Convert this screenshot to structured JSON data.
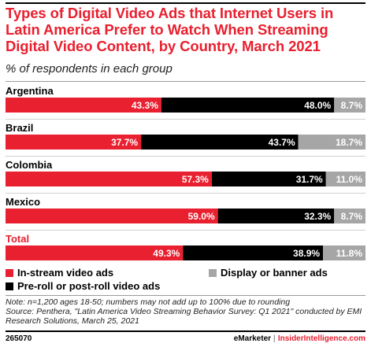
{
  "title": "Types of Digital Video Ads that Internet Users in Latin America Prefer to Watch When Streaming Digital Video Content, by Country, March 2021",
  "subtitle": "% of respondents in each group",
  "colors": {
    "instream": "#e8202f",
    "preroll": "#000000",
    "display": "#a6a6a6",
    "title": "#e8202f"
  },
  "chart_data": {
    "type": "bar",
    "orientation": "horizontal",
    "stacked": true,
    "categories": [
      "Argentina",
      "Brazil",
      "Colombia",
      "Mexico",
      "Total"
    ],
    "series": [
      {
        "name": "In-stream video ads",
        "values": [
          43.3,
          37.7,
          57.3,
          59.0,
          49.3
        ],
        "labels": [
          "43.3%",
          "37.7%",
          "57.3%",
          "59.0%",
          "49.3%"
        ]
      },
      {
        "name": "Pre-roll or post-roll video ads",
        "values": [
          48.0,
          43.7,
          31.7,
          32.3,
          38.9
        ],
        "labels": [
          "48.0%",
          "43.7%",
          "31.7%",
          "32.3%",
          "38.9%"
        ]
      },
      {
        "name": "Display or banner ads",
        "values": [
          8.7,
          18.7,
          11.0,
          8.7,
          11.8
        ],
        "labels": [
          "8.7%",
          "18.7%",
          "11.0%",
          "8.7%",
          "11.8%"
        ]
      }
    ],
    "highlight_category": "Total",
    "legend": "bottom",
    "grid": false
  },
  "legend": {
    "instream": "In-stream video ads",
    "preroll": "Pre-roll or post-roll video ads",
    "display": "Display or banner ads"
  },
  "footnote": {
    "note": "Note: n=1,200 ages 18-50; numbers may not add up to 100% due to rounding",
    "source": "Source: Penthera, \"Latin America Video Streaming Behavior Survey: Q1 2021\" conducted by EMI Research Solutions, March 25, 2021"
  },
  "footer": {
    "chart_id": "265070",
    "brand_emarketer": "eMarketer",
    "brand_sep": "|",
    "brand_ii": "InsiderIntelligence.com"
  }
}
